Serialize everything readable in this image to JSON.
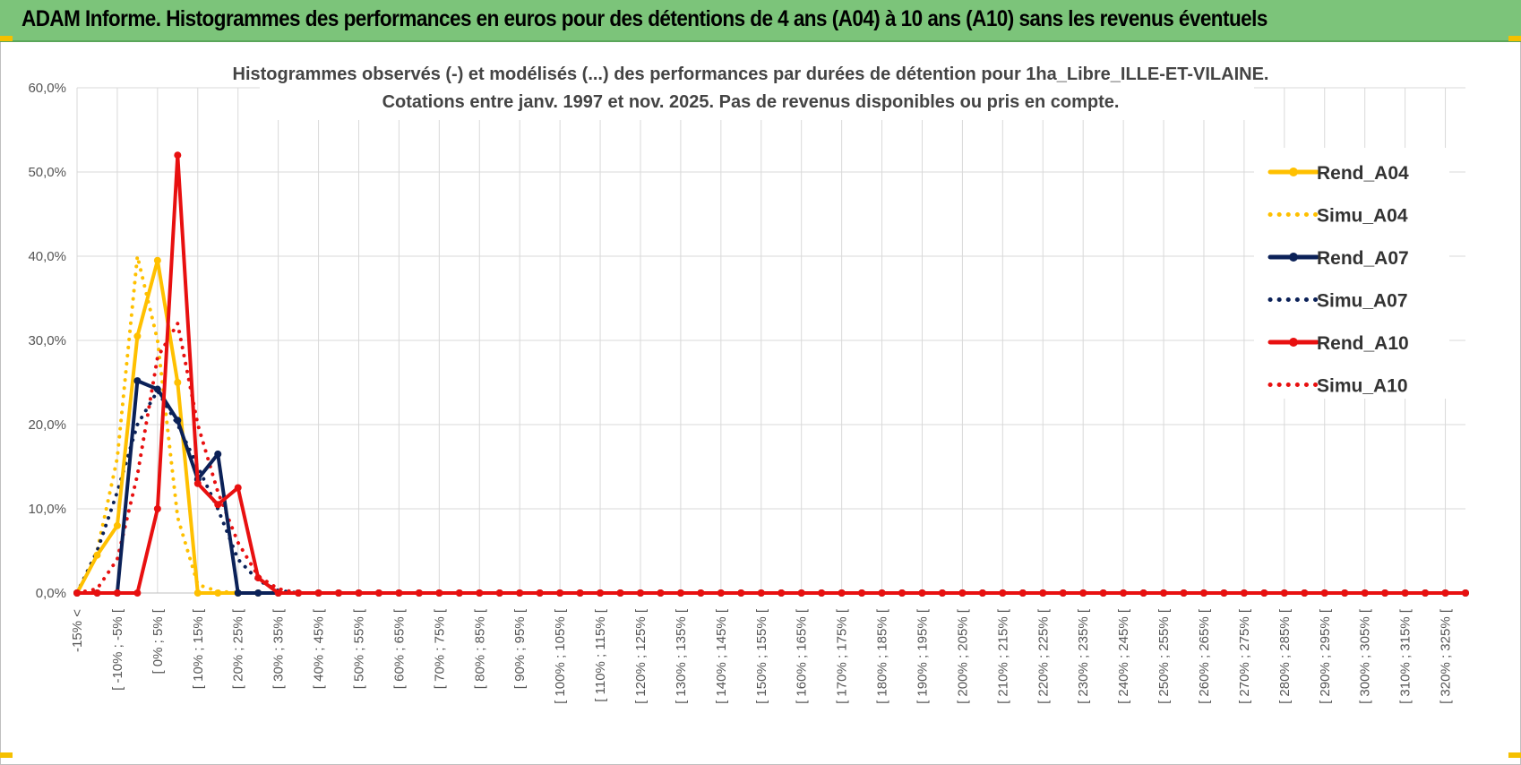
{
  "header": {
    "title": "ADAM Informe. Histogrammes des performances en euros pour des détentions de 4 ans (A04) à 10 ans (A10) sans les revenus éventuels"
  },
  "chart_data": {
    "type": "line",
    "title": "Histogrammes observés (-) et modélisés (...) des performances par durées de détention pour 1ha_Libre_ILLE-ET-VILAINE.",
    "subtitle": "Cotations entre janv. 1997 et nov. 2025. Pas de revenus disponibles ou pris en compte.",
    "ylim": [
      0,
      60
    ],
    "yticks": [
      "0,0%",
      "10,0%",
      "20,0%",
      "30,0%",
      "40,0%",
      "50,0%",
      "60,0%"
    ],
    "y_unit": "%",
    "grid": true,
    "legend_position": "right",
    "x_tick_labels": [
      "-15% <",
      "[ -10% ; -5% [",
      "[ 0% ; 5% [",
      "[ 10% ; 15% [",
      "[ 20% ; 25% [",
      "[ 30% ; 35% [",
      "[ 40% ; 45% [",
      "[ 50% ; 55% [",
      "[ 60% ; 65% [",
      "[ 70% ; 75% [",
      "[ 80% ; 85% [",
      "[ 90% ; 95% [",
      "[ 100% ; 105% [",
      "[ 110% ; 115% [",
      "[ 120% ; 125% [",
      "[ 130% ; 135% [",
      "[ 140% ; 145% [",
      "[ 150% ; 155% [",
      "[ 160% ; 165% [",
      "[ 170% ; 175% [",
      "[ 180% ; 185% [",
      "[ 190% ; 195% [",
      "[ 200% ; 205% [",
      "[ 210% ; 215% [",
      "[ 220% ; 225% [",
      "[ 230% ; 235% [",
      "[ 240% ; 245% [",
      "[ 250% ; 255% [",
      "[ 260% ; 265% [",
      "[ 270% ; 275% [",
      "[ 280% ; 285% [",
      "[ 290% ; 295% [",
      "[ 300% ; 305% [",
      "[ 310% ; 315% [",
      "[ 320% ; 325% ["
    ],
    "category_count": 70,
    "series": [
      {
        "name": "Rend_A04",
        "style": "solid",
        "color": "#ffc000",
        "values": [
          0,
          4.5,
          8,
          30.5,
          39.5,
          25,
          0,
          0,
          0,
          0,
          0
        ]
      },
      {
        "name": "Simu_A04",
        "style": "dotted",
        "color": "#ffc000",
        "values": [
          0,
          5,
          16,
          40,
          30,
          9,
          1,
          0.2,
          0,
          0,
          0
        ]
      },
      {
        "name": "Rend_A07",
        "style": "solid",
        "color": "#0b2158",
        "values": [
          0,
          0,
          0,
          25.2,
          24.2,
          20.5,
          13.5,
          16.5,
          0,
          0,
          0
        ]
      },
      {
        "name": "Simu_A07",
        "style": "dotted",
        "color": "#0b2158",
        "values": [
          0,
          5,
          12,
          20,
          24,
          20,
          15,
          10,
          4,
          1.5,
          0.3,
          0
        ]
      },
      {
        "name": "Rend_A10",
        "style": "solid",
        "color": "#e81010",
        "values": [
          0,
          0,
          0,
          0,
          10,
          52,
          13,
          10.5,
          12.5,
          1.8,
          0,
          0
        ]
      },
      {
        "name": "Simu_A10",
        "style": "dotted",
        "color": "#e81010",
        "values": [
          0,
          0.5,
          4,
          14,
          28,
          32,
          20,
          12,
          6,
          2,
          0.5,
          0
        ]
      }
    ]
  }
}
